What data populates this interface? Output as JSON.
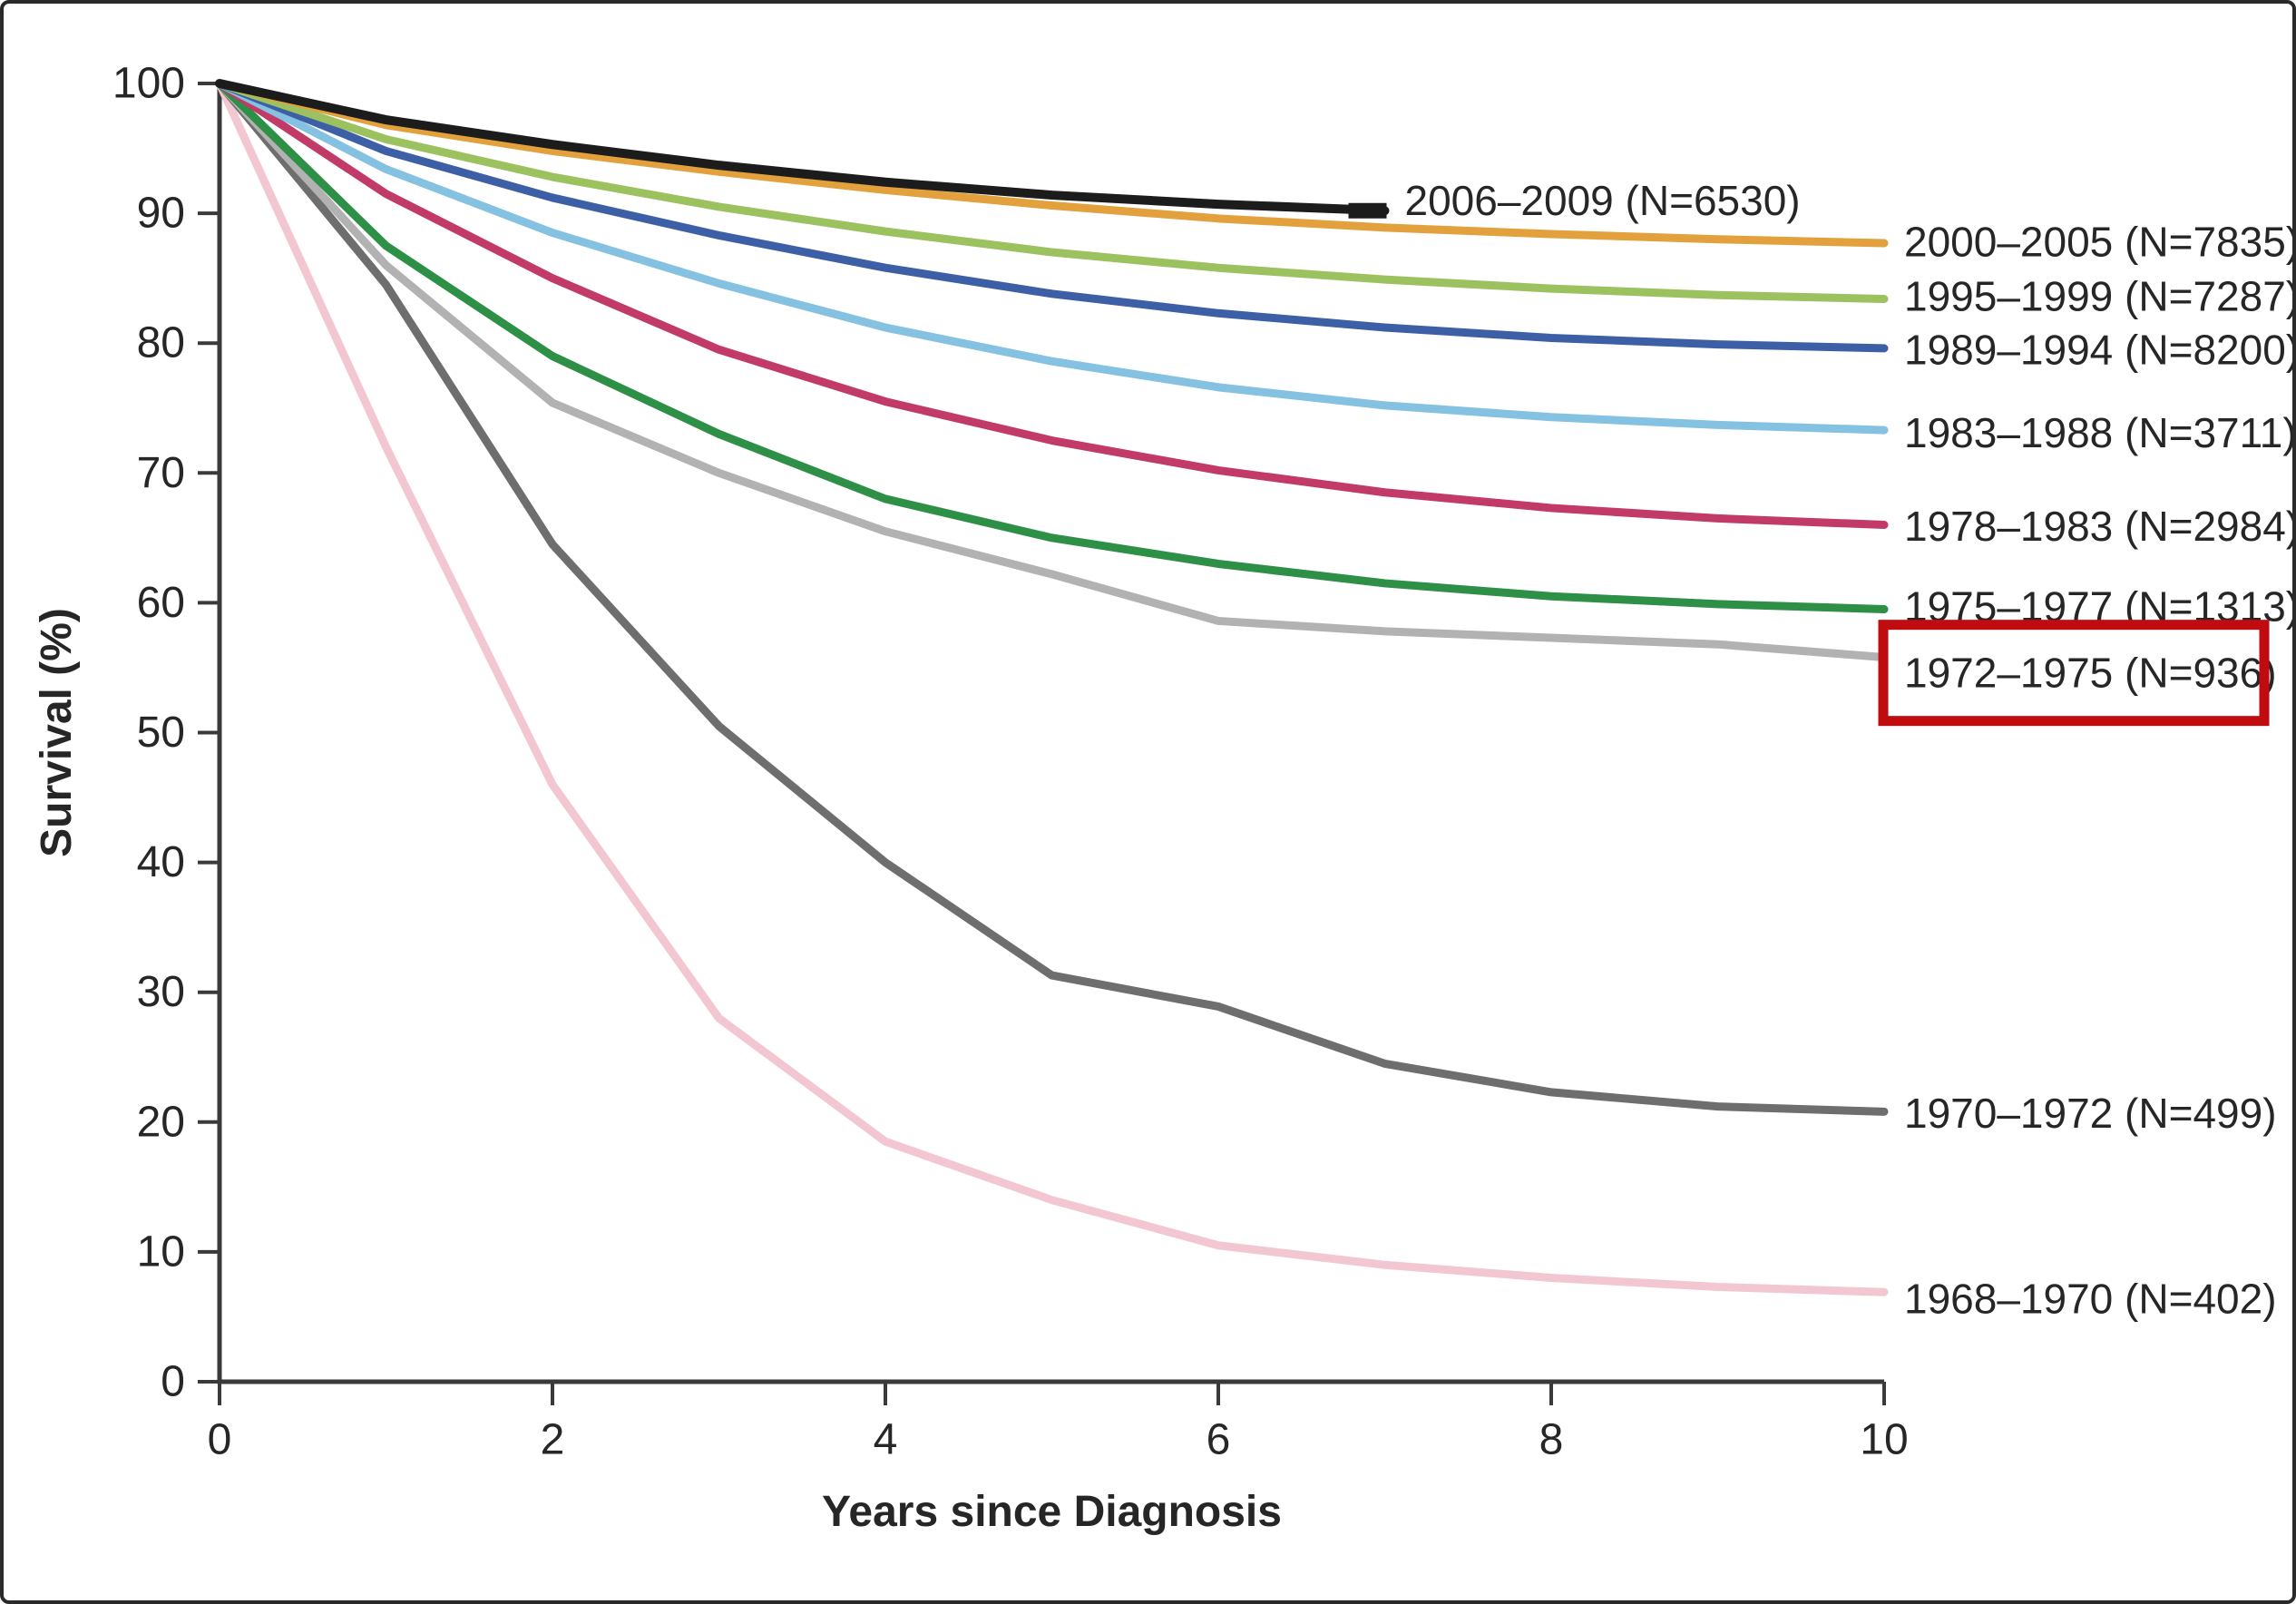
{
  "figure": {
    "background": "#ffffff",
    "frame_color": "#2a2a2a",
    "axis_color": "#3a3a3a",
    "text_color": "#262626"
  },
  "chart_data": {
    "type": "line",
    "title": "",
    "xlabel": "Years since Diagnosis",
    "ylabel": "Survival (%)",
    "xlim": [
      0,
      10
    ],
    "ylim": [
      0,
      100
    ],
    "x_ticks": [
      0,
      2,
      4,
      6,
      8,
      10
    ],
    "y_ticks": [
      0,
      10,
      20,
      30,
      40,
      50,
      60,
      70,
      80,
      90,
      100
    ],
    "grid": false,
    "legend_position": "labels-at-line-ends-right",
    "x_years": [
      0,
      1,
      2,
      3,
      4,
      5,
      6,
      7,
      8,
      9,
      10
    ],
    "series": [
      {
        "period": "2006–2009",
        "n": 6530,
        "label": "2006–2009 (N=6530)",
        "color": "#1C1C1C",
        "line_width": 10,
        "censor_tick": true,
        "values": [
          100,
          97.2,
          95.3,
          93.7,
          92.4,
          91.4,
          90.7,
          90.2
        ],
        "label_value": 91.0,
        "label_x_year": 7.12
      },
      {
        "period": "2000–2005",
        "n": 7835,
        "label": "2000–2005 (N=7835)",
        "color": "#E2A13D",
        "line_width": 9,
        "values": [
          100,
          96.8,
          94.8,
          93.2,
          91.8,
          90.6,
          89.6,
          88.9,
          88.4,
          88.0,
          87.7
        ],
        "label_value": 87.8,
        "label_x_year": 10.12
      },
      {
        "period": "1995–1999",
        "n": 7287,
        "label": "1995–1999 (N=7287)",
        "color": "#9CC25F",
        "line_width": 9,
        "values": [
          100,
          95.7,
          92.8,
          90.5,
          88.6,
          87.0,
          85.8,
          84.9,
          84.2,
          83.7,
          83.4
        ],
        "label_value": 83.6,
        "label_x_year": 10.12
      },
      {
        "period": "1989–1994",
        "n": 8200,
        "label": "1989–1994 (N=8200)",
        "color": "#3D5FA6",
        "line_width": 9,
        "values": [
          100,
          94.8,
          91.2,
          88.3,
          85.8,
          83.8,
          82.3,
          81.2,
          80.4,
          79.9,
          79.6
        ],
        "label_value": 79.5,
        "label_x_year": 10.12
      },
      {
        "period": "1983–1988",
        "n": 3711,
        "label": "1983–1988 (N=3711)",
        "color": "#85C2E2",
        "line_width": 9,
        "values": [
          100,
          93.4,
          88.5,
          84.6,
          81.2,
          78.6,
          76.6,
          75.2,
          74.3,
          73.7,
          73.3
        ],
        "label_value": 73.1,
        "label_x_year": 10.12
      },
      {
        "period": "1978–1983",
        "n": 2984,
        "label": "1978–1983 (N=2984)",
        "color": "#C23A68",
        "line_width": 9,
        "values": [
          100,
          91.5,
          85.0,
          79.5,
          75.5,
          72.5,
          70.2,
          68.5,
          67.3,
          66.5,
          66.0
        ],
        "label_value": 65.9,
        "label_x_year": 10.12
      },
      {
        "period": "1975–1977",
        "n": 1313,
        "label": "1975–1977 (N=1313)",
        "color": "#2E9047",
        "line_width": 9,
        "values": [
          100,
          87.5,
          79.0,
          73.0,
          68.0,
          65.0,
          63.0,
          61.5,
          60.5,
          59.9,
          59.5
        ],
        "label_value": 59.7,
        "label_x_year": 10.12
      },
      {
        "period": "1972–1975",
        "n": 936,
        "label": "1972–1975 (N=936)",
        "color": "#B2B2B2",
        "line_width": 9,
        "highlighted": true,
        "values": [
          100,
          86.0,
          75.4,
          70.0,
          65.5,
          62.2,
          58.6,
          57.8,
          57.3,
          56.8,
          55.8
        ],
        "label_value": 54.6,
        "label_x_year": 10.12
      },
      {
        "period": "1970–1972",
        "n": 499,
        "label": "1970–1972 (N=499)",
        "color": "#6E6E6E",
        "line_width": 9,
        "values": [
          100,
          84.5,
          64.5,
          50.5,
          40.0,
          31.3,
          28.9,
          24.5,
          22.3,
          21.2,
          20.8
        ],
        "label_value": 20.7,
        "label_x_year": 10.12
      },
      {
        "period": "1968–1970",
        "n": 402,
        "label": "1968–1970 (N=402)",
        "color": "#F3C7D2",
        "line_width": 9,
        "values": [
          100,
          72.0,
          46.0,
          28.0,
          18.5,
          14.0,
          10.5,
          9.0,
          8.0,
          7.3,
          6.9
        ],
        "label_value": 6.4,
        "label_x_year": 10.12
      }
    ],
    "annotations": [
      {
        "type": "highlight-box",
        "target_period": "1972–1975",
        "color": "#C10C0F"
      }
    ]
  }
}
